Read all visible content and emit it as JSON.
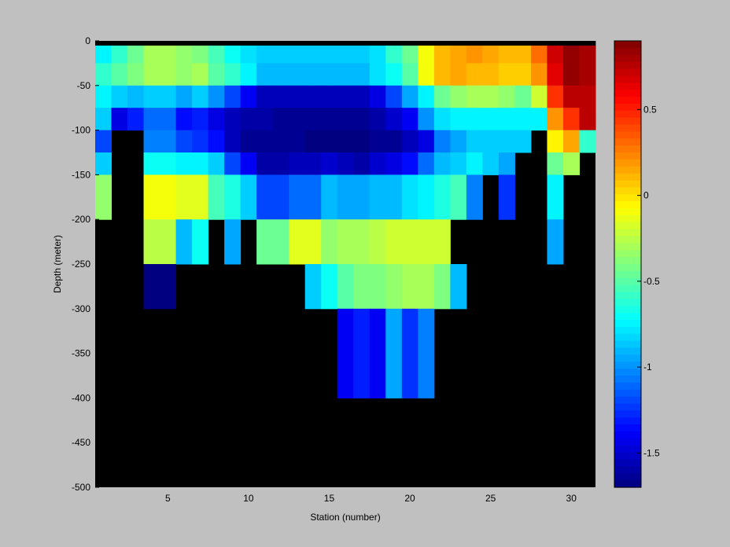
{
  "chart_data": {
    "type": "heatmap",
    "xlabel": "Station (number)",
    "ylabel": "Depth (meter)",
    "xlim": [
      1,
      31
    ],
    "ylim": [
      -500,
      0
    ],
    "xticks": [
      5,
      10,
      15,
      20,
      25,
      30
    ],
    "yticks": [
      0,
      -50,
      -100,
      -150,
      -200,
      -250,
      -300,
      -350,
      -400,
      -450,
      -500
    ],
    "colorbar": {
      "range": [
        -1.7,
        0.9
      ],
      "ticks": [
        0.5,
        0,
        -0.5,
        -1,
        -1.5
      ],
      "colormap": "jet"
    },
    "missing_color": "#000000",
    "stations": [
      1,
      2,
      3,
      4,
      5,
      6,
      7,
      8,
      9,
      10,
      11,
      12,
      13,
      14,
      15,
      16,
      17,
      18,
      19,
      20,
      21,
      22,
      23,
      24,
      25,
      26,
      27,
      28,
      29,
      30,
      31
    ],
    "depth_levels": [
      0,
      -25,
      -50,
      -75,
      -100,
      -125,
      -150,
      -175,
      -200,
      -225,
      -250,
      -275,
      -300,
      -325,
      -350,
      -375,
      -400
    ],
    "depth_row_ranges": [
      [
        0,
        -10
      ],
      [
        -10,
        -25
      ],
      [
        -25,
        -50
      ],
      [
        -50,
        -75
      ],
      [
        -75,
        -100
      ],
      [
        -100,
        -125
      ],
      [
        -125,
        -150
      ],
      [
        -150,
        -200
      ],
      [
        -200,
        -250
      ],
      [
        -250,
        -300
      ],
      [
        -300,
        -400
      ]
    ],
    "values": [
      [
        -0.75,
        -0.6,
        -0.45,
        -0.3,
        -0.3,
        -0.35,
        -0.4,
        -0.55,
        -0.7,
        -0.8,
        -0.85,
        -0.85,
        -0.85,
        -0.85,
        -0.85,
        -0.85,
        -0.85,
        -0.8,
        -0.6,
        -0.45,
        -0.1,
        0.1,
        0.15,
        0.2,
        0.15,
        0.1,
        0.1,
        0.3,
        0.7,
        0.85,
        0.8
      ],
      [
        -0.75,
        -0.6,
        -0.45,
        -0.3,
        -0.3,
        -0.35,
        -0.4,
        -0.55,
        -0.7,
        -0.8,
        -0.85,
        -0.85,
        -0.85,
        -0.85,
        -0.85,
        -0.85,
        -0.85,
        -0.8,
        -0.6,
        -0.45,
        -0.1,
        0.1,
        0.15,
        0.2,
        0.15,
        0.1,
        0.1,
        0.3,
        0.7,
        0.85,
        0.8
      ],
      [
        -0.6,
        -0.5,
        -0.4,
        -0.3,
        -0.3,
        -0.35,
        -0.3,
        -0.5,
        -0.6,
        -0.75,
        -0.9,
        -0.9,
        -0.9,
        -0.9,
        -0.9,
        -0.9,
        -0.9,
        -0.8,
        -0.7,
        -0.5,
        -0.1,
        0.1,
        0.15,
        0.1,
        0.1,
        0.05,
        0.05,
        0.2,
        0.65,
        0.85,
        0.8
      ],
      [
        -0.75,
        -0.85,
        -0.9,
        -0.85,
        -0.85,
        -0.95,
        -0.85,
        -1.0,
        -1.2,
        -1.4,
        -1.55,
        -1.55,
        -1.55,
        -1.55,
        -1.55,
        -1.55,
        -1.55,
        -1.45,
        -1.2,
        -0.95,
        -0.75,
        -0.45,
        -0.35,
        -0.3,
        -0.3,
        -0.35,
        -0.45,
        -0.2,
        0.45,
        0.75,
        0.75
      ],
      [
        -0.85,
        -1.45,
        -1.3,
        -1.1,
        -1.1,
        -1.35,
        -1.3,
        -1.45,
        -1.55,
        -1.6,
        -1.6,
        -1.65,
        -1.65,
        -1.65,
        -1.65,
        -1.65,
        -1.65,
        -1.6,
        -1.5,
        -1.4,
        -1.0,
        -0.8,
        -0.75,
        -0.75,
        -0.75,
        -0.75,
        -0.75,
        -0.75,
        0.2,
        0.45,
        0.75
      ],
      [
        -1.2,
        null,
        null,
        -1.05,
        -1.05,
        -1.2,
        -1.25,
        -1.35,
        -1.55,
        -1.65,
        -1.65,
        -1.65,
        -1.65,
        -1.7,
        -1.7,
        -1.7,
        -1.7,
        -1.65,
        -1.65,
        -1.55,
        -1.45,
        -1.05,
        -0.95,
        -0.85,
        -0.85,
        -0.85,
        -0.85,
        null,
        -0.05,
        0.15,
        -0.6
      ],
      [
        -0.85,
        null,
        null,
        -0.7,
        -0.7,
        -0.75,
        -0.75,
        -0.85,
        -1.2,
        -1.4,
        -1.6,
        -1.6,
        -1.55,
        -1.55,
        -1.5,
        -1.55,
        -1.6,
        -1.5,
        -1.45,
        -1.35,
        -1.1,
        -0.9,
        -0.85,
        -0.75,
        -0.85,
        -0.95,
        null,
        null,
        -0.45,
        -0.3,
        null
      ],
      [
        -0.35,
        null,
        null,
        -0.1,
        -0.1,
        -0.15,
        -0.15,
        -0.55,
        -0.65,
        -0.85,
        -1.2,
        -1.2,
        -1.1,
        -1.1,
        -0.9,
        -0.95,
        -0.95,
        -0.9,
        -0.9,
        -0.8,
        -0.75,
        -0.65,
        -0.55,
        -1.05,
        null,
        -1.25,
        null,
        null,
        -0.75,
        null,
        null
      ],
      [
        null,
        null,
        null,
        -0.25,
        -0.25,
        -0.9,
        -0.7,
        null,
        -0.95,
        null,
        -0.45,
        -0.45,
        -0.15,
        -0.15,
        -0.35,
        -0.3,
        -0.3,
        -0.25,
        -0.2,
        -0.2,
        -0.2,
        -0.2,
        null,
        null,
        null,
        null,
        null,
        null,
        -0.95,
        null,
        null
      ],
      [
        null,
        null,
        null,
        -1.7,
        -1.7,
        null,
        null,
        null,
        null,
        null,
        null,
        null,
        null,
        -0.85,
        -0.7,
        -0.5,
        -0.4,
        -0.4,
        -0.35,
        -0.3,
        -0.3,
        -0.4,
        -0.9,
        null,
        null,
        null,
        null,
        null,
        null,
        null,
        null
      ],
      [
        null,
        null,
        null,
        null,
        null,
        null,
        null,
        null,
        null,
        null,
        null,
        null,
        null,
        null,
        null,
        -1.4,
        -1.3,
        -1.4,
        -0.95,
        -1.25,
        -1.05,
        null,
        null,
        null,
        null,
        null,
        null,
        null,
        null,
        null,
        null
      ]
    ]
  }
}
